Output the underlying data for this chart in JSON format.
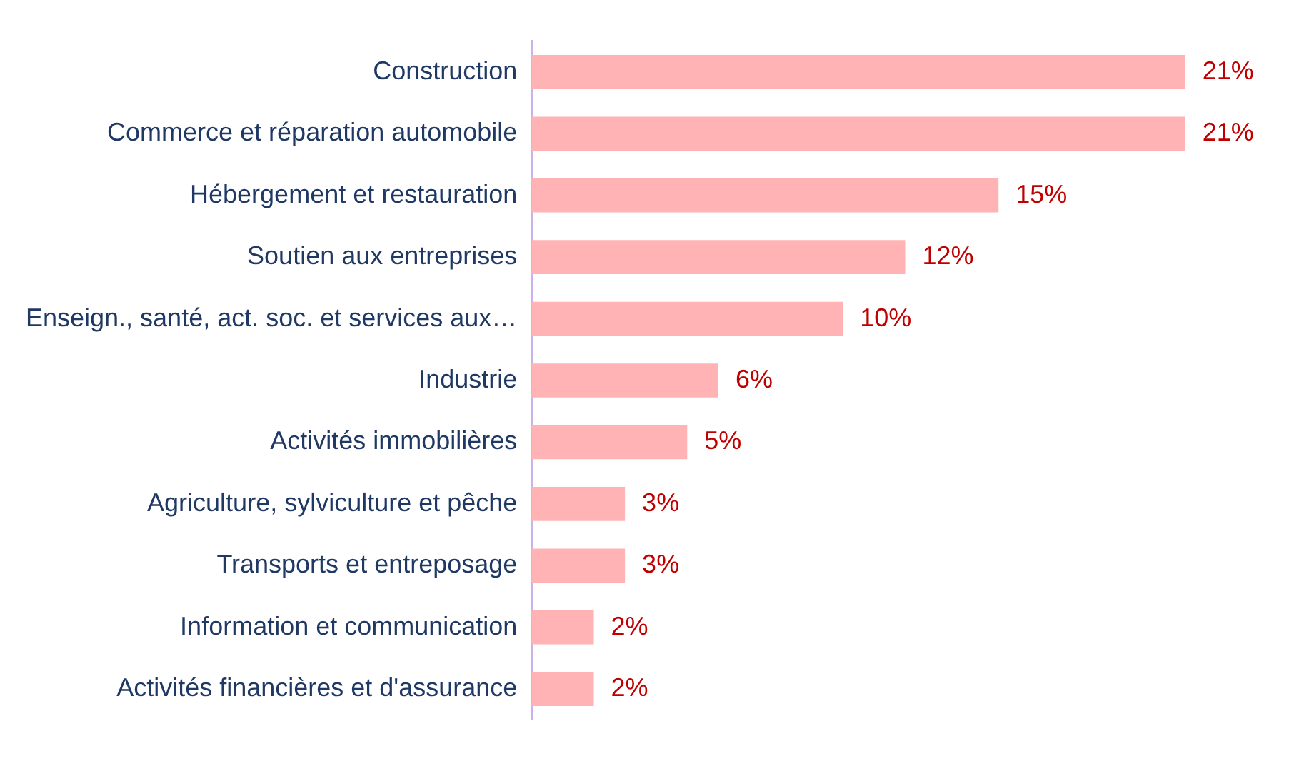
{
  "chart_data": {
    "type": "bar",
    "orientation": "horizontal",
    "categories": [
      "Construction",
      "Commerce et réparation automobile",
      "Hébergement et restauration",
      "Soutien aux entreprises",
      "Enseign., santé, act. soc. et services aux…",
      "Industrie",
      "Activités immobilières",
      "Agriculture, sylviculture et pêche",
      "Transports et entreposage",
      "Information et communication",
      "Activités financières et d'assurance"
    ],
    "values": [
      21,
      21,
      15,
      12,
      10,
      6,
      5,
      3,
      3,
      2,
      2
    ],
    "value_labels": [
      "21%",
      "21%",
      "15%",
      "12%",
      "10%",
      "6%",
      "5%",
      "3%",
      "3%",
      "2%",
      "2%"
    ],
    "color": "#ffb3b5",
    "legend": false
  }
}
